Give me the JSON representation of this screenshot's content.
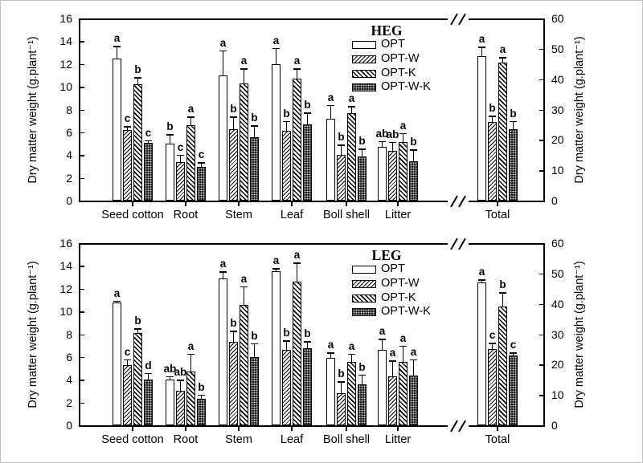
{
  "figure": {
    "background": "#ffffff",
    "border_color": "#bfbfbf",
    "ink_color": "#000000"
  },
  "chart_data": [
    {
      "panel": "top",
      "type": "bar",
      "title": "HEG",
      "grid": false,
      "error_bars": "upper",
      "legend_position": "top-right-inside",
      "axis_break_between": [
        "Litter",
        "Total"
      ],
      "left_axis": {
        "label": "Dry matter weight (g.plant⁻¹)",
        "min": 0,
        "max": 16,
        "tick_step": 2,
        "ticks": [
          0,
          2,
          4,
          6,
          8,
          10,
          12,
          14,
          16
        ]
      },
      "right_axis": {
        "label": "Dry matter weight (g.plant⁻¹)",
        "min": 0,
        "max": 60,
        "tick_step": 10,
        "ticks": [
          0,
          10,
          20,
          30,
          40,
          50,
          60
        ],
        "applies_to": "Total"
      },
      "categories": [
        "Seed cotton",
        "Root",
        "Stem",
        "Leaf",
        "Boll shell",
        "Litter"
      ],
      "total_category": "Total",
      "series": [
        {
          "name": "OPT",
          "pattern": "open-white",
          "values": [
            12.5,
            5.0,
            11.0,
            12.0,
            7.2,
            4.75
          ],
          "errors": [
            1.1,
            0.85,
            2.2,
            1.4,
            1.2,
            0.5
          ],
          "letters": [
            "a",
            "b",
            "a",
            "a",
            "a",
            "ab"
          ],
          "total": 47.5,
          "total_error": 3.2,
          "total_letter": "a"
        },
        {
          "name": "OPT-W",
          "pattern": "hatch-forward-diagonal",
          "values": [
            6.2,
            3.4,
            6.3,
            6.1,
            4.0,
            4.4
          ],
          "errors": [
            0.35,
            0.65,
            1.1,
            0.9,
            0.9,
            0.75
          ],
          "letters": [
            "c",
            "c",
            "b",
            "b",
            "b",
            "ab"
          ],
          "total": 26.0,
          "total_error": 1.9,
          "total_letter": "b"
        },
        {
          "name": "OPT-K",
          "pattern": "hatch-back-diagonal",
          "values": [
            10.2,
            6.65,
            10.3,
            10.7,
            7.7,
            5.15
          ],
          "errors": [
            0.65,
            0.75,
            1.3,
            0.9,
            0.6,
            0.8
          ],
          "letters": [
            "b",
            "a",
            "a",
            "a",
            "a",
            "a"
          ],
          "total": 45.5,
          "total_error": 1.8,
          "total_letter": "a"
        },
        {
          "name": "OPT-W-K",
          "pattern": "dark-dotted",
          "values": [
            5.1,
            2.95,
            5.6,
            6.7,
            3.9,
            3.45
          ],
          "errors": [
            0.2,
            0.4,
            1.0,
            1.05,
            0.65,
            1.05
          ],
          "letters": [
            "c",
            "c",
            "b",
            "b",
            "b",
            "b"
          ],
          "total": 23.5,
          "total_error": 2.7,
          "total_letter": "b"
        }
      ]
    },
    {
      "panel": "bottom",
      "type": "bar",
      "title": "LEG",
      "grid": false,
      "error_bars": "upper",
      "legend_position": "top-right-inside",
      "axis_break_between": [
        "Litter",
        "Total"
      ],
      "left_axis": {
        "label": "Dry matter weight (g.plant⁻¹)",
        "min": 0,
        "max": 16,
        "tick_step": 2,
        "ticks": [
          0,
          2,
          4,
          6,
          8,
          10,
          12,
          14,
          16
        ]
      },
      "right_axis": {
        "label": "Dry matter weight (g.plant⁻¹)",
        "min": 0,
        "max": 60,
        "tick_step": 10,
        "ticks": [
          0,
          10,
          20,
          30,
          40,
          50,
          60
        ],
        "applies_to": "Total"
      },
      "categories": [
        "Seed cotton",
        "Root",
        "Stem",
        "Leaf",
        "Boll shell",
        "Litter"
      ],
      "total_category": "Total",
      "series": [
        {
          "name": "OPT",
          "pattern": "open-white",
          "values": [
            10.8,
            4.0,
            12.9,
            13.5,
            5.9,
            6.6
          ],
          "errors": [
            0.15,
            0.3,
            0.6,
            0.3,
            0.5,
            1.0
          ],
          "letters": [
            "a",
            "ab",
            "a",
            "a",
            "a",
            "a"
          ],
          "total": 47.0,
          "total_error": 1.0,
          "total_letter": "a"
        },
        {
          "name": "OPT-W",
          "pattern": "hatch-forward-diagonal",
          "values": [
            5.3,
            3.0,
            7.3,
            6.6,
            2.85,
            4.3
          ],
          "errors": [
            0.5,
            1.0,
            1.0,
            0.85,
            1.0,
            1.4
          ],
          "letters": [
            "c",
            "ab",
            "b",
            "b",
            "b",
            "a"
          ],
          "total": 25.0,
          "total_error": 2.2,
          "total_letter": "c"
        },
        {
          "name": "OPT-K",
          "pattern": "hatch-back-diagonal",
          "values": [
            8.1,
            4.7,
            10.6,
            12.6,
            5.6,
            5.6
          ],
          "errors": [
            0.4,
            1.6,
            1.6,
            1.7,
            0.7,
            1.4
          ],
          "letters": [
            "b",
            "a",
            "a",
            "a",
            "a",
            "a"
          ],
          "total": 39.0,
          "total_error": 4.8,
          "total_letter": "b"
        },
        {
          "name": "OPT-W-K",
          "pattern": "dark-dotted",
          "values": [
            4.0,
            2.3,
            6.0,
            6.8,
            3.6,
            4.4
          ],
          "errors": [
            0.6,
            0.4,
            1.2,
            0.6,
            0.85,
            1.4
          ],
          "letters": [
            "d",
            "b",
            "b",
            "b",
            "b",
            "a"
          ],
          "total": 23.0,
          "total_error": 1.0,
          "total_letter": "c"
        }
      ]
    }
  ]
}
